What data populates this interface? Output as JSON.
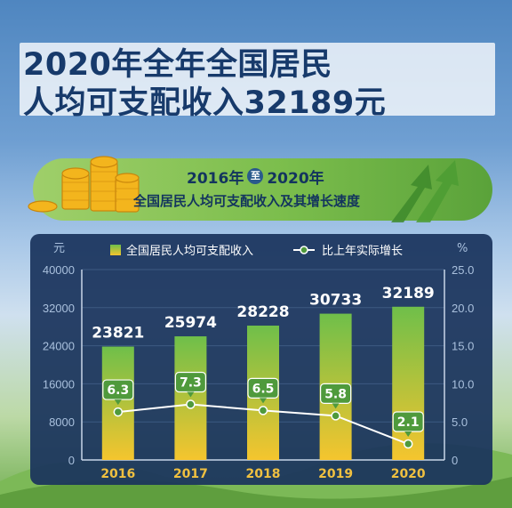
{
  "title_line1": "2020年全年全国居民",
  "title_line2": "人均可支配收入32189元",
  "banner": {
    "year_start": "2016年",
    "to_char": "至",
    "year_end": "2020年",
    "subtitle": "全国居民人均可支配收入及其增长速度"
  },
  "colors": {
    "bar_top": "#6fbf4a",
    "bar_bottom": "#f5c52e",
    "line": "#ffffff",
    "label_box": "#4f9a3c",
    "panel": "#1a345c",
    "axis_text": "#a9c0dd"
  },
  "chart_data": {
    "type": "bar",
    "categories": [
      "2016",
      "2017",
      "2018",
      "2019",
      "2020"
    ],
    "left_axis": {
      "unit": "元",
      "ylim": [
        0,
        40000
      ],
      "ticks": [
        "0",
        "8000",
        "16000",
        "24000",
        "32000",
        "40000"
      ]
    },
    "right_axis": {
      "unit": "%",
      "ylim": [
        0,
        25
      ],
      "ticks": [
        "0",
        "5.0",
        "10.0",
        "15.0",
        "20.0",
        "25.0"
      ]
    },
    "series": [
      {
        "name": "全国居民人均可支配收入",
        "kind": "bar",
        "axis": "left",
        "values": [
          23821,
          25974,
          28228,
          30733,
          32189
        ],
        "labels": [
          "23821",
          "25974",
          "28228",
          "30733",
          "32189"
        ]
      },
      {
        "name": "比上年实际增长",
        "kind": "line",
        "axis": "right",
        "values": [
          6.3,
          7.3,
          6.5,
          5.8,
          2.1
        ],
        "labels": [
          "6.3",
          "7.3",
          "6.5",
          "5.8",
          "2.1"
        ]
      }
    ],
    "grid": true,
    "legend": "top"
  }
}
